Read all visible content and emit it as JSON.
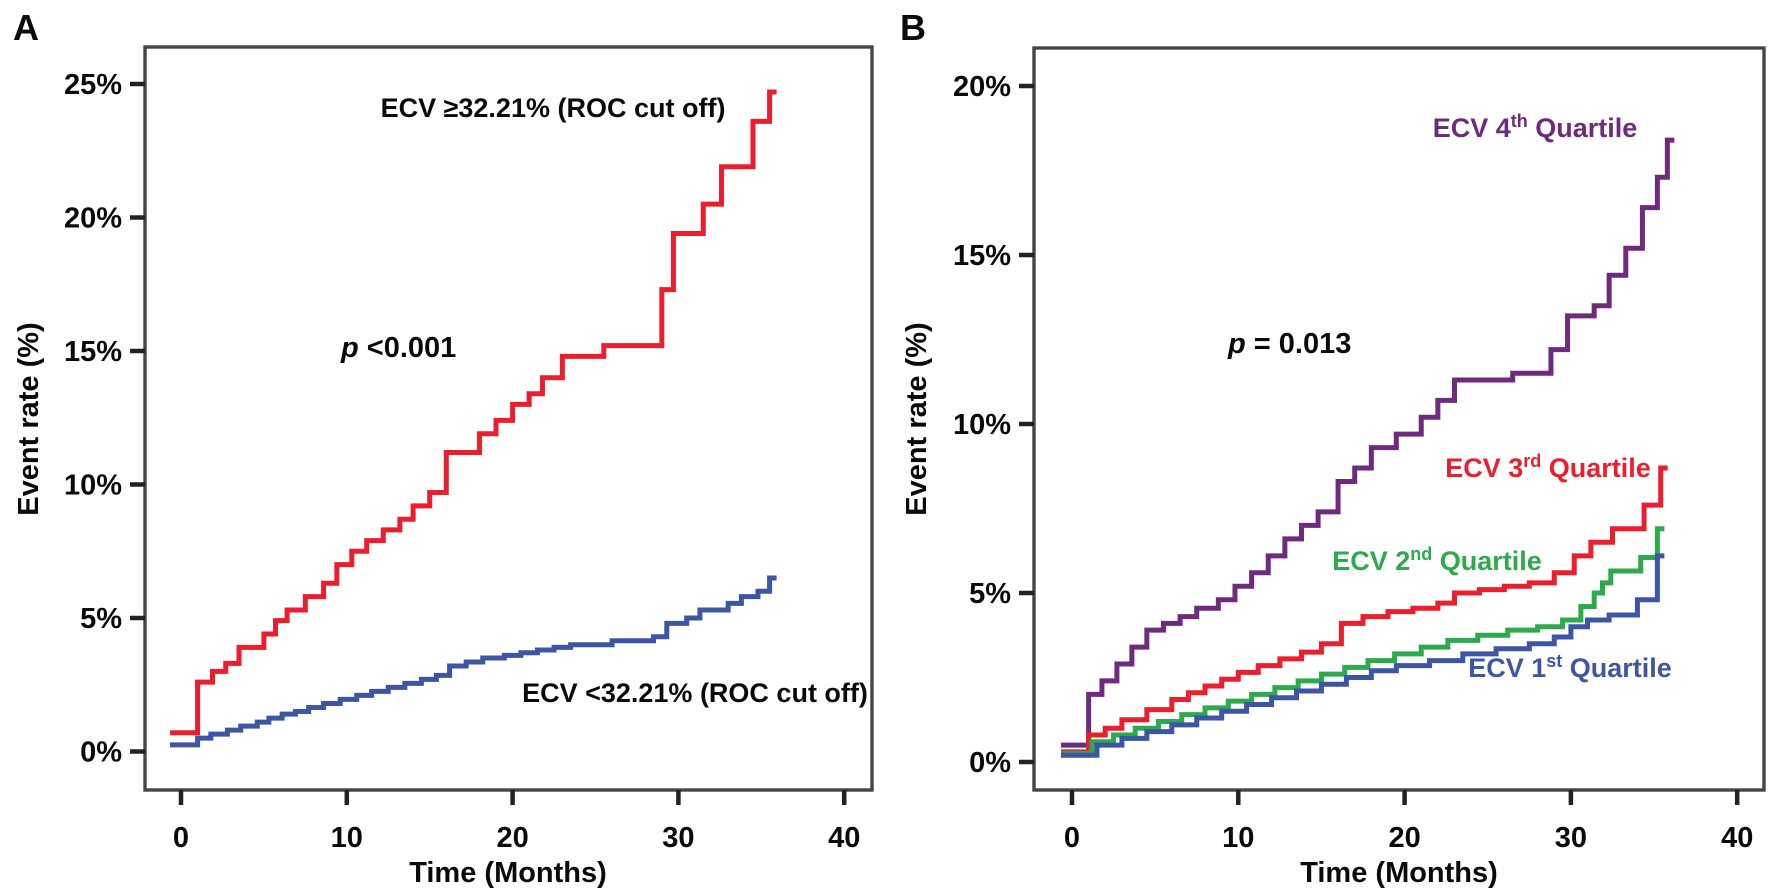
{
  "figure": {
    "panels": [
      {
        "letter": "A",
        "y_axis_title": "Event rate (%)",
        "x_axis_title": "Time (Months)",
        "p_italic": "p",
        "p_rest": " <0.001"
      },
      {
        "letter": "B",
        "y_axis_title": "Event rate (%)",
        "x_axis_title": "Time (Months)",
        "p_italic": "p",
        "p_rest": " = 0.013"
      }
    ]
  },
  "chart_data": [
    {
      "type": "line",
      "subtype": "step",
      "panel": "A",
      "xlabel": "Time (Months)",
      "ylabel": "Event rate (%)",
      "xlim": [
        0,
        44
      ],
      "ylim": [
        0,
        27
      ],
      "xticks": [
        0,
        10,
        20,
        30,
        40
      ],
      "xtick_labels": [
        "0",
        "10",
        "20",
        "30",
        "40"
      ],
      "yticks": [
        0,
        5,
        10,
        15,
        20,
        25
      ],
      "ytick_labels": [
        "0%",
        "5%",
        "10%",
        "15%",
        "20%",
        "25%"
      ],
      "grid": false,
      "p_value": "p <0.001",
      "series": [
        {
          "name": "ECV ≥32.21% (ROC cut off)",
          "label_pre": "ECV ≥32.21% (ROC cut off)",
          "label_sup": "",
          "label_post": "",
          "color": "#eb1e2d",
          "points": [
            [
              0,
              0.7
            ],
            [
              1,
              2.6
            ],
            [
              1.9,
              3.0
            ],
            [
              2.7,
              3.3
            ],
            [
              3.5,
              3.9
            ],
            [
              5,
              4.4
            ],
            [
              5.7,
              4.9
            ],
            [
              6.4,
              5.3
            ],
            [
              7.5,
              5.8
            ],
            [
              8.6,
              6.3
            ],
            [
              9.4,
              7.0
            ],
            [
              10.3,
              7.5
            ],
            [
              11.2,
              7.9
            ],
            [
              12.2,
              8.3
            ],
            [
              13.2,
              8.7
            ],
            [
              14,
              9.2
            ],
            [
              15,
              9.7
            ],
            [
              16,
              11.2
            ],
            [
              18,
              11.9
            ],
            [
              19,
              12.4
            ],
            [
              20,
              13.0
            ],
            [
              21,
              13.4
            ],
            [
              21.8,
              14.0
            ],
            [
              23,
              14.8
            ],
            [
              25.5,
              15.2
            ],
            [
              29,
              17.3
            ],
            [
              29.7,
              19.4
            ],
            [
              31.5,
              20.5
            ],
            [
              32.6,
              21.9
            ],
            [
              34.5,
              23.6
            ],
            [
              35.5,
              24.7
            ]
          ]
        },
        {
          "name": "ECV <32.21% (ROC cut off)",
          "label_pre": "ECV <32.21% (ROC cut off)",
          "label_sup": "",
          "label_post": "",
          "color": "#3c55a5",
          "points": [
            [
              0,
              0.25
            ],
            [
              1,
              0.5
            ],
            [
              1.8,
              0.65
            ],
            [
              2.8,
              0.8
            ],
            [
              3.6,
              0.95
            ],
            [
              4.6,
              1.1
            ],
            [
              5.3,
              1.25
            ],
            [
              6.1,
              1.4
            ],
            [
              6.9,
              1.5
            ],
            [
              7.7,
              1.65
            ],
            [
              8.6,
              1.8
            ],
            [
              9.6,
              1.95
            ],
            [
              10.6,
              2.1
            ],
            [
              11.5,
              2.25
            ],
            [
              12.5,
              2.4
            ],
            [
              13.5,
              2.55
            ],
            [
              14.5,
              2.7
            ],
            [
              15.4,
              2.85
            ],
            [
              16.2,
              3.2
            ],
            [
              17.2,
              3.35
            ],
            [
              18.2,
              3.5
            ],
            [
              19.5,
              3.6
            ],
            [
              20.5,
              3.7
            ],
            [
              21.5,
              3.8
            ],
            [
              22.5,
              3.9
            ],
            [
              23.5,
              4.0
            ],
            [
              26,
              4.15
            ],
            [
              28.5,
              4.3
            ],
            [
              29.3,
              4.8
            ],
            [
              30.5,
              5.0
            ],
            [
              31.3,
              5.3
            ],
            [
              33,
              5.55
            ],
            [
              33.8,
              5.8
            ],
            [
              34.8,
              6.0
            ],
            [
              35.5,
              6.5
            ]
          ]
        }
      ]
    },
    {
      "type": "line",
      "subtype": "step",
      "panel": "B",
      "xlabel": "Time (Months)",
      "ylabel": "Event rate (%)",
      "xlim": [
        0,
        44
      ],
      "ylim": [
        0,
        21
      ],
      "xticks": [
        0,
        10,
        20,
        30,
        40
      ],
      "xtick_labels": [
        "0",
        "10",
        "20",
        "30",
        "40"
      ],
      "yticks": [
        0,
        5,
        10,
        15,
        20
      ],
      "ytick_labels": [
        "0%",
        "5%",
        "10%",
        "15%",
        "20%"
      ],
      "grid": false,
      "p_value": "p = 0.013",
      "series": [
        {
          "name": "ECV 4th Quartile",
          "label_pre": "ECV 4",
          "label_sup": "th",
          "label_post": " Quartile",
          "color": "#6e2a7d",
          "points": [
            [
              0,
              0.5
            ],
            [
              1,
              2.0
            ],
            [
              1.8,
              2.4
            ],
            [
              2.7,
              2.9
            ],
            [
              3.6,
              3.4
            ],
            [
              4.5,
              3.9
            ],
            [
              5.5,
              4.1
            ],
            [
              6.5,
              4.3
            ],
            [
              7.5,
              4.55
            ],
            [
              8.8,
              4.8
            ],
            [
              9.8,
              5.2
            ],
            [
              10.8,
              5.6
            ],
            [
              11.8,
              6.1
            ],
            [
              12.8,
              6.6
            ],
            [
              13.8,
              7.0
            ],
            [
              14.8,
              7.4
            ],
            [
              16,
              8.3
            ],
            [
              17,
              8.7
            ],
            [
              18,
              9.3
            ],
            [
              19.5,
              9.7
            ],
            [
              21,
              10.2
            ],
            [
              22,
              10.7
            ],
            [
              23,
              11.3
            ],
            [
              26.5,
              11.5
            ],
            [
              28.8,
              12.2
            ],
            [
              29.8,
              13.2
            ],
            [
              31.4,
              13.5
            ],
            [
              32.3,
              14.4
            ],
            [
              33.3,
              15.2
            ],
            [
              34.3,
              16.4
            ],
            [
              35.2,
              17.3
            ],
            [
              35.8,
              18.4
            ]
          ]
        },
        {
          "name": "ECV 3rd Quartile",
          "label_pre": "ECV 3",
          "label_sup": "rd",
          "label_post": " Quartile",
          "color": "#eb1e2d",
          "points": [
            [
              0,
              0.3
            ],
            [
              1,
              0.8
            ],
            [
              2,
              1.0
            ],
            [
              3,
              1.25
            ],
            [
              4.5,
              1.55
            ],
            [
              6,
              1.85
            ],
            [
              7,
              2.05
            ],
            [
              8,
              2.25
            ],
            [
              9,
              2.45
            ],
            [
              10,
              2.65
            ],
            [
              11.2,
              2.85
            ],
            [
              12.5,
              3.05
            ],
            [
              13.8,
              3.25
            ],
            [
              15,
              3.5
            ],
            [
              16.2,
              4.1
            ],
            [
              17.5,
              4.3
            ],
            [
              19,
              4.45
            ],
            [
              20.5,
              4.55
            ],
            [
              22,
              4.7
            ],
            [
              23,
              5.0
            ],
            [
              24.5,
              5.1
            ],
            [
              26,
              5.2
            ],
            [
              27.5,
              5.3
            ],
            [
              29,
              5.6
            ],
            [
              30.2,
              6.1
            ],
            [
              31.2,
              6.5
            ],
            [
              32.5,
              6.9
            ],
            [
              34.4,
              7.6
            ],
            [
              35.4,
              8.7
            ]
          ]
        },
        {
          "name": "ECV 2nd Quartile",
          "label_pre": "ECV 2",
          "label_sup": "nd",
          "label_post": " Quartile",
          "color": "#2daa4b",
          "points": [
            [
              0,
              0.25
            ],
            [
              1.2,
              0.6
            ],
            [
              2.5,
              0.8
            ],
            [
              3.8,
              1.0
            ],
            [
              5.2,
              1.2
            ],
            [
              6.6,
              1.4
            ],
            [
              8,
              1.6
            ],
            [
              9.4,
              1.8
            ],
            [
              10.8,
              2.0
            ],
            [
              12.2,
              2.2
            ],
            [
              13.6,
              2.4
            ],
            [
              15,
              2.6
            ],
            [
              16.4,
              2.8
            ],
            [
              17.8,
              3.0
            ],
            [
              19.4,
              3.2
            ],
            [
              21,
              3.4
            ],
            [
              22.6,
              3.6
            ],
            [
              24.4,
              3.75
            ],
            [
              26.2,
              3.9
            ],
            [
              28,
              4.0
            ],
            [
              29.5,
              4.2
            ],
            [
              30.6,
              4.6
            ],
            [
              31.4,
              5.0
            ],
            [
              31.9,
              5.3
            ],
            [
              32.4,
              5.65
            ],
            [
              34.2,
              6.05
            ],
            [
              35.2,
              6.9
            ]
          ]
        },
        {
          "name": "ECV 1st Quartile",
          "label_pre": "ECV 1",
          "label_sup": "st",
          "label_post": " Quartile",
          "color": "#3c55a5",
          "points": [
            [
              0,
              0.2
            ],
            [
              1.5,
              0.5
            ],
            [
              3,
              0.7
            ],
            [
              4.5,
              0.9
            ],
            [
              6,
              1.1
            ],
            [
              7.5,
              1.3
            ],
            [
              9,
              1.5
            ],
            [
              10.5,
              1.7
            ],
            [
              12,
              1.9
            ],
            [
              13.5,
              2.1
            ],
            [
              15,
              2.3
            ],
            [
              16.5,
              2.5
            ],
            [
              18,
              2.7
            ],
            [
              19.5,
              2.85
            ],
            [
              21.5,
              3.0
            ],
            [
              23.5,
              3.2
            ],
            [
              25.5,
              3.35
            ],
            [
              27.5,
              3.5
            ],
            [
              29,
              3.7
            ],
            [
              30,
              4.0
            ],
            [
              31,
              4.2
            ],
            [
              32.3,
              4.35
            ],
            [
              34,
              4.8
            ],
            [
              35.2,
              6.1
            ]
          ]
        }
      ]
    }
  ]
}
